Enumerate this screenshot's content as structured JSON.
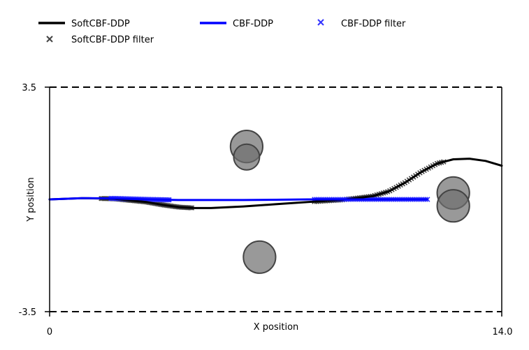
{
  "chart_data": {
    "type": "line",
    "title": "",
    "xlabel": "X position",
    "ylabel": "Y position",
    "xlim": [
      0,
      14.0
    ],
    "ylim": [
      -3.5,
      3.5
    ],
    "xticks": [
      "0",
      "14.0"
    ],
    "yticks": [
      "-3.5",
      "3.5"
    ],
    "bounds": [
      -3.5,
      3.5
    ],
    "grid": false,
    "legend": {
      "placement": "top-left, outside plot",
      "entries": [
        "SoftCBF-DDP",
        "SoftCBF-DDP filter",
        "CBF-DDP",
        "CBF-DDP filter"
      ]
    },
    "series": [
      {
        "name": "SoftCBF-DDP",
        "kind": "line",
        "color": "#000000",
        "x": [
          0,
          1.0,
          2.0,
          3.0,
          3.5,
          4.0,
          4.5,
          5.0,
          6.0,
          7.0,
          8.0,
          9.0,
          10.0,
          10.5,
          11.0,
          11.5,
          12.0,
          12.5,
          13.0,
          13.5,
          14.0
        ],
        "y": [
          0,
          0.04,
          0.02,
          -0.08,
          -0.17,
          -0.24,
          -0.27,
          -0.27,
          -0.22,
          -0.15,
          -0.08,
          -0.02,
          0.1,
          0.25,
          0.52,
          0.85,
          1.12,
          1.25,
          1.27,
          1.2,
          1.05
        ]
      },
      {
        "name": "SoftCBF-DDP filter",
        "kind": "scatter",
        "marker": "x",
        "color": "#444444",
        "segments": [
          {
            "x": [
              1.6,
              4.4
            ],
            "y": [
              -0.02,
              -0.27
            ]
          },
          {
            "x": [
              8.2,
              12.2
            ],
            "y": [
              -0.12,
              1.2
            ]
          }
        ]
      },
      {
        "name": "CBF-DDP",
        "kind": "line",
        "color": "#0000ff",
        "x": [
          0,
          1.0,
          2.0,
          3.0,
          4.0,
          5.0,
          6.0,
          7.0,
          8.0,
          9.0,
          10.0,
          11.0,
          11.7
        ],
        "y": [
          0,
          0.04,
          0.03,
          0.0,
          -0.02,
          -0.02,
          -0.02,
          -0.01,
          0.0,
          0.0,
          0.0,
          0.0,
          0.0
        ]
      },
      {
        "name": "CBF-DDP filter",
        "kind": "scatter",
        "marker": "x",
        "color": "#3333ff",
        "segments": [
          {
            "x": [
              1.9,
              3.7
            ],
            "y": [
              0.02,
              -0.04
            ]
          },
          {
            "x": [
              8.2,
              11.7
            ],
            "y": [
              0.0,
              -0.02
            ]
          }
        ]
      }
    ],
    "obstacles": [
      {
        "x": 6.1,
        "y": 1.65,
        "r": 0.5
      },
      {
        "x": 6.1,
        "y": 1.32,
        "r": 0.4
      },
      {
        "x": 6.5,
        "y": -1.8,
        "r": 0.5
      },
      {
        "x": 12.5,
        "y": 0.2,
        "r": 0.5
      },
      {
        "x": 12.5,
        "y": -0.2,
        "r": 0.5
      }
    ]
  }
}
